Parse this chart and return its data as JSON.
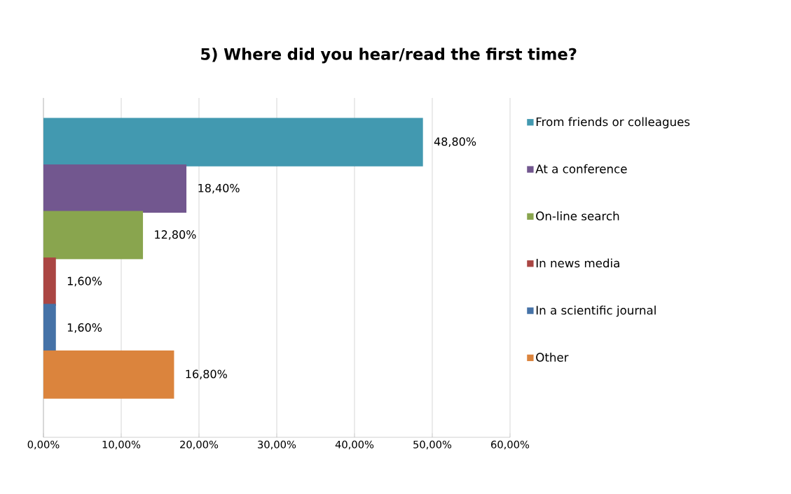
{
  "chart_data": {
    "type": "bar",
    "orientation": "horizontal",
    "title": "5) Where did you hear/read the first time?",
    "categories": [
      null
    ],
    "series": [
      {
        "name": "From friends or colleagues",
        "color": "#4299b0",
        "values": [
          48.8
        ],
        "value_labels": [
          "48,80%"
        ]
      },
      {
        "name": "At a conference",
        "color": "#72578f",
        "values": [
          18.4
        ],
        "value_labels": [
          "18,40%"
        ]
      },
      {
        "name": "On-line search",
        "color": "#89a54e",
        "values": [
          12.8
        ],
        "value_labels": [
          "12,80%"
        ]
      },
      {
        "name": "In news media",
        "color": "#aa4643",
        "values": [
          1.6
        ],
        "value_labels": [
          "1,60%"
        ]
      },
      {
        "name": "In a scientific journal",
        "color": "#4572a7",
        "values": [
          1.6
        ],
        "value_labels": [
          "1,60%"
        ]
      },
      {
        "name": "Other",
        "color": "#db843d",
        "values": [
          16.8
        ],
        "value_labels": [
          "16,80%"
        ]
      }
    ],
    "xlim": [
      0,
      60
    ],
    "xticks": [
      {
        "value": 0,
        "label": "0,00%"
      },
      {
        "value": 10,
        "label": "10,00%"
      },
      {
        "value": 20,
        "label": "20,00%"
      },
      {
        "value": 30,
        "label": "30,00%"
      },
      {
        "value": 40,
        "label": "40,00%"
      },
      {
        "value": 50,
        "label": "50,00%"
      },
      {
        "value": 60,
        "label": "60,00%"
      }
    ],
    "grid": "x",
    "legend": "right"
  }
}
